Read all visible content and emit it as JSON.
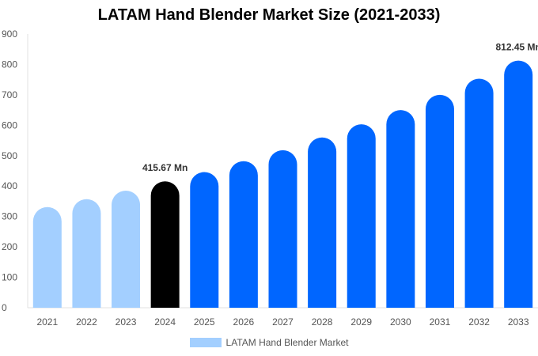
{
  "chart_data": {
    "type": "bar",
    "title": "LATAM Hand Blender Market Size (2021-2033)",
    "categories": [
      "2021",
      "2022",
      "2023",
      "2024",
      "2025",
      "2026",
      "2027",
      "2028",
      "2029",
      "2030",
      "2031",
      "2032",
      "2033"
    ],
    "series": [
      {
        "name": "LATAM Hand Blender Market",
        "values": [
          331,
          357,
          385,
          415.67,
          446,
          482,
          518,
          560,
          603,
          650,
          700,
          753,
          812.45
        ]
      }
    ],
    "data_labels": [
      {
        "category": "2024",
        "text": "415.67 Mn"
      },
      {
        "category": "2033",
        "text": "812.45 Mn"
      }
    ],
    "ylim": [
      0,
      900
    ],
    "yticks": [
      0,
      100,
      200,
      300,
      400,
      500,
      600,
      700,
      800,
      900
    ],
    "grid": false,
    "legend_position": "bottom",
    "colors": {
      "historical": "#A3CFFF",
      "base_year": "#000000",
      "forecast": "#0066FF"
    },
    "bar_color_groups": [
      "historical",
      "historical",
      "historical",
      "base_year",
      "forecast",
      "forecast",
      "forecast",
      "forecast",
      "forecast",
      "forecast",
      "forecast",
      "forecast",
      "forecast"
    ]
  }
}
